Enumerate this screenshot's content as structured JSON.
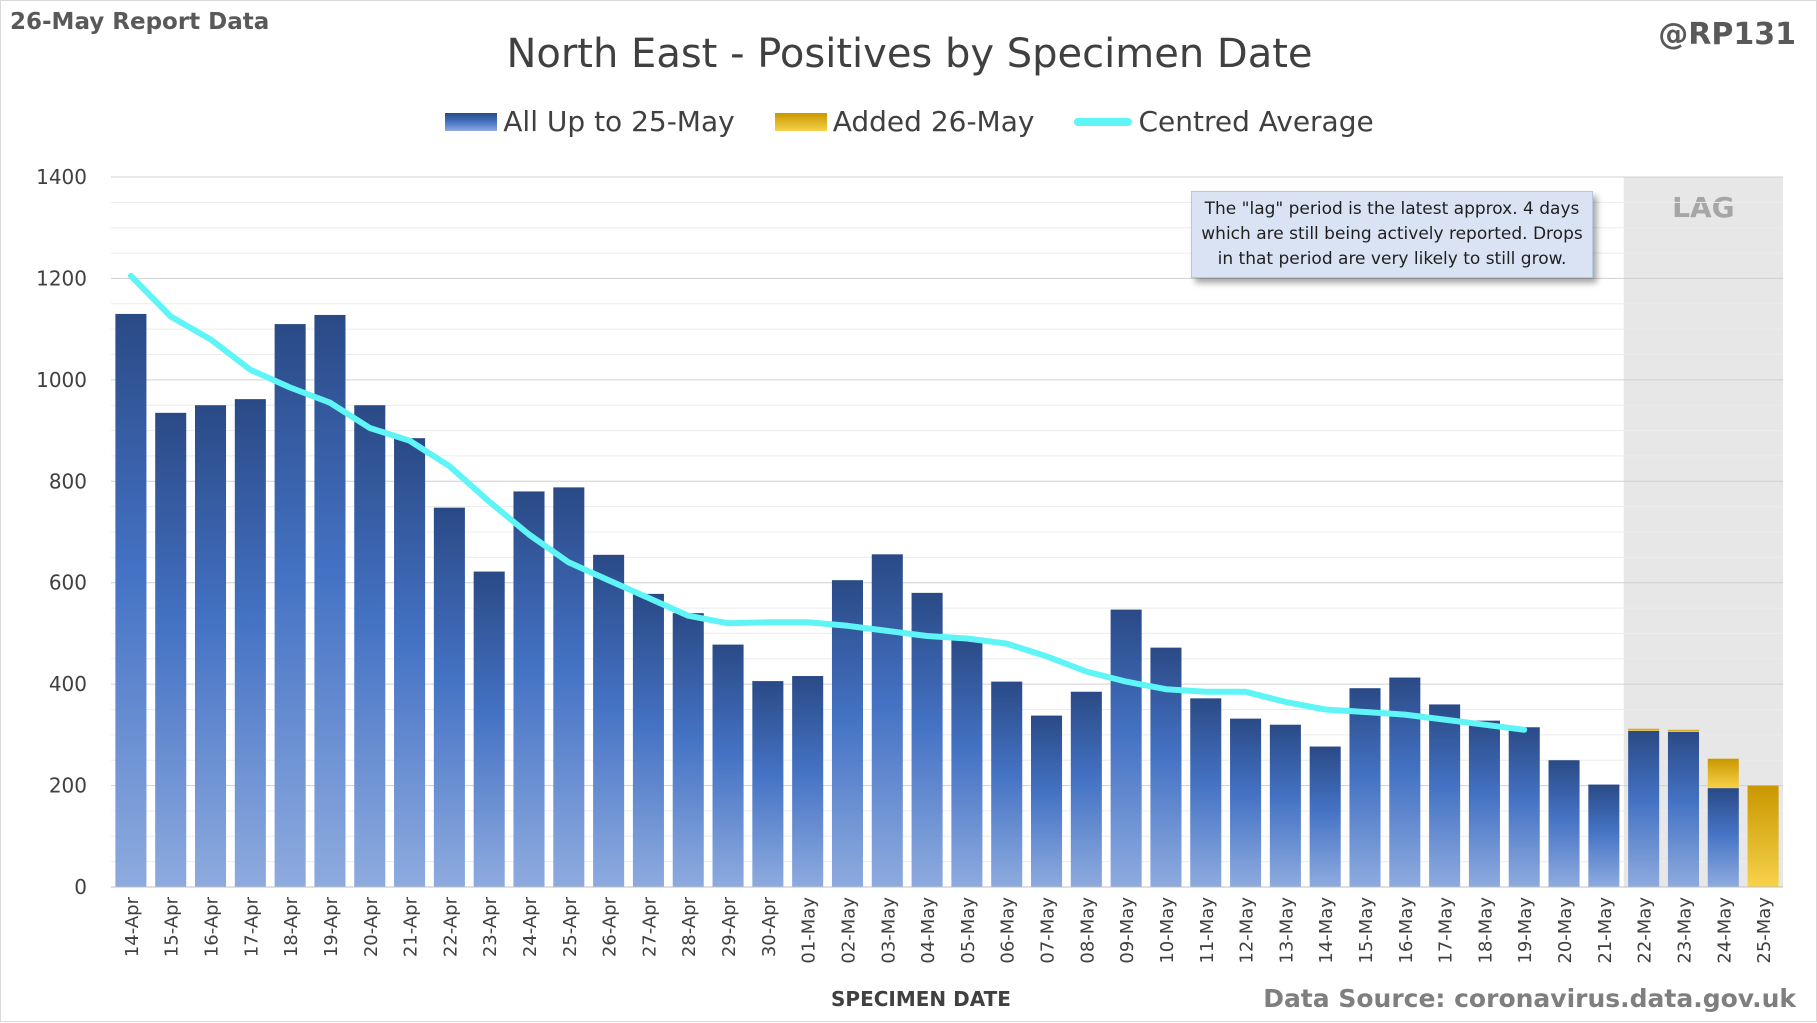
{
  "header": {
    "report_label": "26-May Report Data",
    "handle": "@RP131",
    "title": "North East - Positives by Specimen Date"
  },
  "legend": {
    "items": [
      {
        "label": "All Up to 25-May",
        "color": "#4472c4"
      },
      {
        "label": "Added 26-May",
        "color": "#e8b41c"
      },
      {
        "label": "Centred Average",
        "color": "#5ff5f7"
      }
    ]
  },
  "note": {
    "text": "The \"lag\" period is the latest approx. 4 days which are still being actively reported.  Drops in that period are very likely to still grow."
  },
  "lag_label": "LAG",
  "footer": {
    "source": "Data Source: coronavirus.data.gov.uk"
  },
  "chart_data": {
    "type": "bar",
    "stacked": true,
    "xlabel": "SPECIMEN DATE",
    "ylabel": "",
    "ylim": [
      0,
      1400
    ],
    "yticks": [
      0,
      200,
      400,
      600,
      800,
      1000,
      1200,
      1400
    ],
    "grid": true,
    "legend_position": "top",
    "lag_start_category": "22-May",
    "categories": [
      "14-Apr",
      "15-Apr",
      "16-Apr",
      "17-Apr",
      "18-Apr",
      "19-Apr",
      "20-Apr",
      "21-Apr",
      "22-Apr",
      "23-Apr",
      "24-Apr",
      "25-Apr",
      "26-Apr",
      "27-Apr",
      "28-Apr",
      "29-Apr",
      "30-Apr",
      "01-May",
      "02-May",
      "03-May",
      "04-May",
      "05-May",
      "06-May",
      "07-May",
      "08-May",
      "09-May",
      "10-May",
      "11-May",
      "12-May",
      "13-May",
      "14-May",
      "15-May",
      "16-May",
      "17-May",
      "18-May",
      "19-May",
      "20-May",
      "21-May",
      "22-May",
      "23-May",
      "24-May",
      "25-May"
    ],
    "series": [
      {
        "name": "All Up to 25-May",
        "color": "#4472c4",
        "values": [
          1130,
          935,
          950,
          962,
          1110,
          1128,
          950,
          885,
          748,
          622,
          780,
          788,
          655,
          578,
          540,
          478,
          406,
          416,
          605,
          656,
          580,
          492,
          405,
          338,
          385,
          547,
          472,
          372,
          332,
          320,
          277,
          392,
          413,
          360,
          328,
          315,
          250,
          202,
          308,
          306,
          195,
          0
        ]
      },
      {
        "name": "Added 26-May",
        "color": "#e8b41c",
        "values": [
          0,
          0,
          0,
          0,
          0,
          0,
          0,
          0,
          0,
          0,
          0,
          0,
          0,
          0,
          0,
          0,
          0,
          0,
          0,
          0,
          0,
          0,
          0,
          0,
          0,
          0,
          0,
          0,
          0,
          0,
          0,
          0,
          0,
          0,
          0,
          0,
          0,
          0,
          4,
          4,
          58,
          200
        ]
      },
      {
        "name": "Centred Average",
        "type": "line",
        "color": "#5ff5f7",
        "values": [
          1205,
          1125,
          1080,
          1020,
          985,
          955,
          905,
          880,
          830,
          760,
          695,
          640,
          605,
          570,
          535,
          520,
          522,
          522,
          515,
          505,
          495,
          490,
          480,
          455,
          425,
          405,
          390,
          385,
          385,
          365,
          350,
          345,
          340,
          330,
          320,
          310,
          null,
          null,
          null,
          null,
          null,
          null
        ]
      }
    ]
  }
}
